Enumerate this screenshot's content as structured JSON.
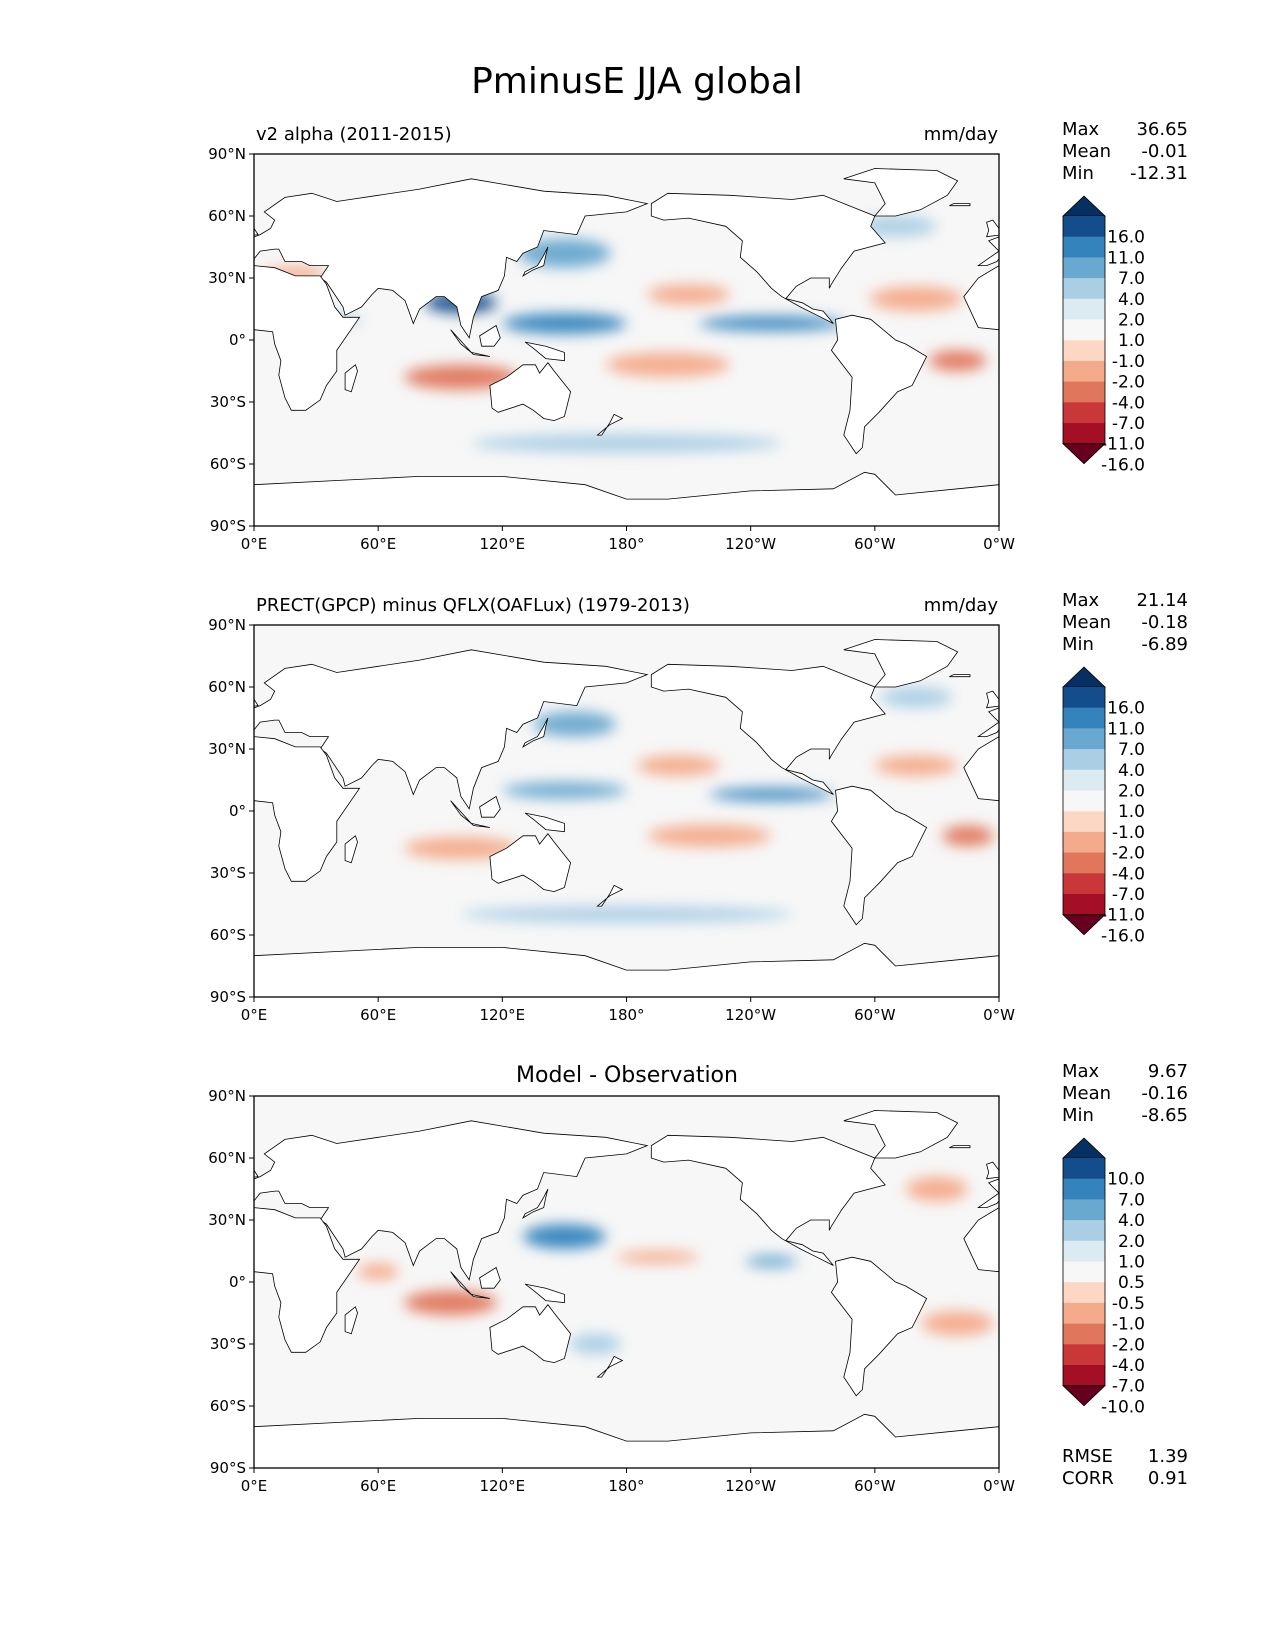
{
  "figure": {
    "title": "PminusE JJA global"
  },
  "colors": {
    "cmap": [
      "#67001f",
      "#a50f26",
      "#c93738",
      "#e0775c",
      "#f4ab8b",
      "#fcd7c3",
      "#f7f7f7",
      "#dceaf2",
      "#aacfe5",
      "#69a8cf",
      "#3483bd",
      "#144d8b",
      "#053061"
    ],
    "land": "#ffffff",
    "coast": "#000000"
  },
  "axes": {
    "lon_ticks": [
      "0°E",
      "60°E",
      "120°E",
      "180°",
      "120°W",
      "60°W",
      "0°W"
    ],
    "lat_ticks": [
      "90°N",
      "60°N",
      "30°N",
      "0°",
      "30°S",
      "60°S",
      "90°S"
    ]
  },
  "panels": [
    {
      "left_title": "v2 alpha (2011-2015)",
      "center_title": "",
      "right_title": "mm/day",
      "stats": [
        {
          "label": "Max",
          "value": "36.65"
        },
        {
          "label": "Mean",
          "value": "-0.01"
        },
        {
          "label": "Min",
          "value": "-12.31"
        }
      ],
      "colorbar_labels": [
        "16.0",
        "11.0",
        "7.0",
        "4.0",
        "2.0",
        "1.0",
        "-1.0",
        "-2.0",
        "-4.0",
        "-7.0",
        "-11.0",
        "-16.0"
      ],
      "extra_stats": []
    },
    {
      "left_title": "PRECT(GPCP) minus QFLX(OAFLux) (1979-2013)",
      "center_title": "",
      "right_title": "mm/day",
      "stats": [
        {
          "label": "Max",
          "value": "21.14"
        },
        {
          "label": "Mean",
          "value": "-0.18"
        },
        {
          "label": "Min",
          "value": "-6.89"
        }
      ],
      "colorbar_labels": [
        "16.0",
        "11.0",
        "7.0",
        "4.0",
        "2.0",
        "1.0",
        "-1.0",
        "-2.0",
        "-4.0",
        "-7.0",
        "-11.0",
        "-16.0"
      ],
      "extra_stats": []
    },
    {
      "left_title": "",
      "center_title": "Model - Observation",
      "right_title": "",
      "stats": [
        {
          "label": "Max",
          "value": "9.67"
        },
        {
          "label": "Mean",
          "value": "-0.16"
        },
        {
          "label": "Min",
          "value": "-8.65"
        }
      ],
      "colorbar_labels": [
        "10.0",
        "7.0",
        "4.0",
        "2.0",
        "1.0",
        "0.5",
        "-0.5",
        "-1.0",
        "-2.0",
        "-4.0",
        "-7.0",
        "-10.0"
      ],
      "extra_stats": [
        {
          "label": "RMSE",
          "value": "1.39"
        },
        {
          "label": "CORR",
          "value": "0.91"
        }
      ]
    }
  ],
  "chart_data": [
    {
      "type": "heatmap",
      "title": "v2 alpha (2011-2015)",
      "units": "mm/day",
      "xlim": [
        0,
        360
      ],
      "ylim": [
        -90,
        90
      ],
      "levels": [
        -16,
        -11,
        -7,
        -4,
        -2,
        -1,
        1,
        2,
        4,
        7,
        11,
        16
      ],
      "features": [
        {
          "lon": 150,
          "lat": 8,
          "value": 8,
          "w": 60,
          "h": 10
        },
        {
          "lon": 250,
          "lat": 8,
          "value": 8,
          "w": 70,
          "h": 7
        },
        {
          "lon": 100,
          "lat": 18,
          "value": 11,
          "w": 35,
          "h": 10
        },
        {
          "lon": 150,
          "lat": 42,
          "value": 4,
          "w": 45,
          "h": 14
        },
        {
          "lon": 200,
          "lat": -12,
          "value": -4,
          "w": 60,
          "h": 12
        },
        {
          "lon": 100,
          "lat": -18,
          "value": -5,
          "w": 55,
          "h": 12
        },
        {
          "lon": 210,
          "lat": 22,
          "value": -3,
          "w": 40,
          "h": 10
        },
        {
          "lon": 320,
          "lat": 20,
          "value": -3,
          "w": 45,
          "h": 12
        },
        {
          "lon": 340,
          "lat": -10,
          "value": -6,
          "w": 28,
          "h": 10
        },
        {
          "lon": 180,
          "lat": -50,
          "value": 2,
          "w": 150,
          "h": 9
        },
        {
          "lon": 310,
          "lat": 55,
          "value": 2,
          "w": 40,
          "h": 10
        },
        {
          "lon": 20,
          "lat": 32,
          "value": -3,
          "w": 30,
          "h": 7
        },
        {
          "lon": 40,
          "lat": 10,
          "value": 3,
          "w": 25,
          "h": 5
        }
      ]
    },
    {
      "type": "heatmap",
      "title": "PRECT(GPCP) minus QFLX(OAFLux) (1979-2013)",
      "units": "mm/day",
      "xlim": [
        0,
        360
      ],
      "ylim": [
        -90,
        90
      ],
      "levels": [
        -16,
        -11,
        -7,
        -4,
        -2,
        -1,
        1,
        2,
        4,
        7,
        11,
        16
      ],
      "features": [
        {
          "lon": 150,
          "lat": 10,
          "value": 6,
          "w": 60,
          "h": 8
        },
        {
          "lon": 250,
          "lat": 8,
          "value": 7,
          "w": 60,
          "h": 6
        },
        {
          "lon": 155,
          "lat": 42,
          "value": 4,
          "w": 40,
          "h": 12
        },
        {
          "lon": 100,
          "lat": -18,
          "value": -4,
          "w": 55,
          "h": 11
        },
        {
          "lon": 220,
          "lat": -12,
          "value": -3,
          "w": 60,
          "h": 11
        },
        {
          "lon": 205,
          "lat": 22,
          "value": -3,
          "w": 40,
          "h": 10
        },
        {
          "lon": 320,
          "lat": 22,
          "value": -3,
          "w": 40,
          "h": 10
        },
        {
          "lon": 345,
          "lat": -12,
          "value": -5,
          "w": 25,
          "h": 10
        },
        {
          "lon": 180,
          "lat": -50,
          "value": 2,
          "w": 160,
          "h": 8
        },
        {
          "lon": 320,
          "lat": 55,
          "value": 3,
          "w": 35,
          "h": 10
        }
      ]
    },
    {
      "type": "heatmap",
      "title": "Model - Observation",
      "units": "mm/day",
      "xlim": [
        0,
        360
      ],
      "ylim": [
        -90,
        90
      ],
      "levels": [
        -10,
        -7,
        -4,
        -2,
        -1,
        -0.5,
        0.5,
        1,
        2,
        4,
        7,
        10
      ],
      "features": [
        {
          "lon": 150,
          "lat": 22,
          "value": 4,
          "w": 40,
          "h": 12
        },
        {
          "lon": 95,
          "lat": -10,
          "value": -3,
          "w": 45,
          "h": 12
        },
        {
          "lon": 250,
          "lat": 10,
          "value": 2,
          "w": 25,
          "h": 6
        },
        {
          "lon": 195,
          "lat": 12,
          "value": -1.5,
          "w": 40,
          "h": 6
        },
        {
          "lon": 165,
          "lat": -30,
          "value": 1.5,
          "w": 25,
          "h": 10
        },
        {
          "lon": 330,
          "lat": 45,
          "value": -1.5,
          "w": 30,
          "h": 12
        },
        {
          "lon": 340,
          "lat": -20,
          "value": -1.5,
          "w": 35,
          "h": 12
        },
        {
          "lon": 60,
          "lat": 5,
          "value": -1.5,
          "w": 20,
          "h": 8
        }
      ]
    }
  ]
}
